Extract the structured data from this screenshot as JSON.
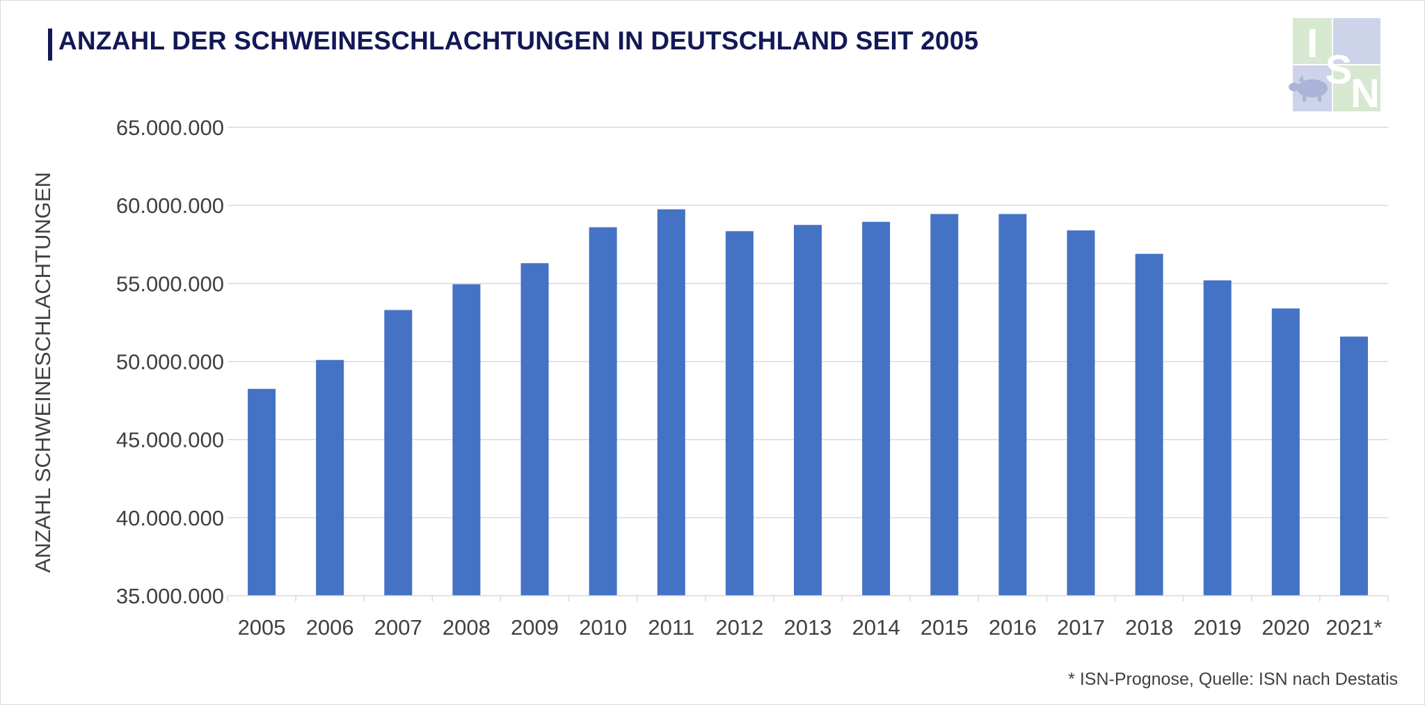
{
  "title": "ANZAHL DER SCHWEINESCHLACHTUNGEN IN DEUTSCHLAND SEIT 2005",
  "footnote": "* ISN-Prognose, Quelle: ISN nach Destatis",
  "logo": {
    "icon": "isn-pig-logo",
    "letters": [
      "I",
      "S",
      "N"
    ],
    "colors": [
      "#d6e8cf",
      "#cdd4ea"
    ]
  },
  "colors": {
    "title": "#131857",
    "bar": "#4472c4",
    "grid": "#d9d9d9",
    "text": "#404040"
  },
  "chart_data": {
    "type": "bar",
    "title": "ANZAHL DER SCHWEINESCHLACHTUNGEN IN DEUTSCHLAND SEIT 2005",
    "xlabel": "",
    "ylabel": "ANZAHL SCHWEINESCHLACHTUNGEN",
    "categories": [
      "2005",
      "2006",
      "2007",
      "2008",
      "2009",
      "2010",
      "2011",
      "2012",
      "2013",
      "2014",
      "2015",
      "2016",
      "2017",
      "2018",
      "2019",
      "2020",
      "2021*"
    ],
    "values": [
      48250000,
      50100000,
      53300000,
      54950000,
      56300000,
      58600000,
      59750000,
      58350000,
      58750000,
      58950000,
      59450000,
      59450000,
      58400000,
      56900000,
      55200000,
      53400000,
      51600000
    ],
    "ylim": [
      35000000,
      65000000
    ],
    "yticks": [
      35000000,
      40000000,
      45000000,
      50000000,
      55000000,
      60000000,
      65000000
    ],
    "ytick_labels": [
      "35.000.000",
      "40.000.000",
      "45.000.000",
      "50.000.000",
      "55.000.000",
      "60.000.000",
      "65.000.000"
    ],
    "grid": true,
    "legend": "none"
  }
}
